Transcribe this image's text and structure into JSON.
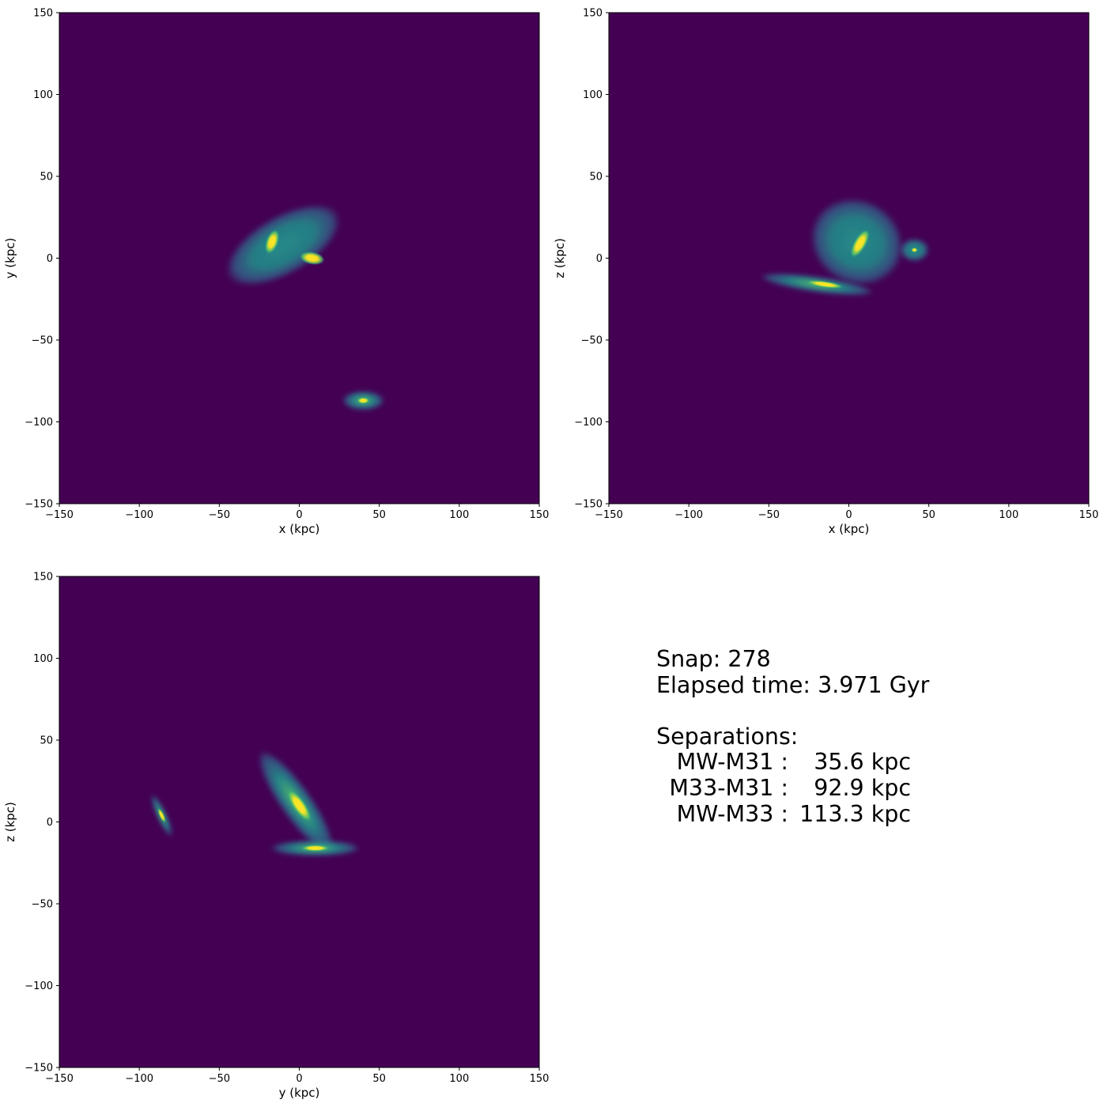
{
  "colors": {
    "background": "#440154",
    "halo": "#31688e",
    "mid": "#21918c",
    "bright": "#5ec962",
    "core": "#fde725"
  },
  "chart_data": [
    {
      "type": "heatmap",
      "xlabel": "x (kpc)",
      "ylabel": "y (kpc)",
      "xlim": [
        -150,
        150
      ],
      "ylim": [
        -150,
        150
      ],
      "xticks": [
        "−150",
        "−100",
        "−50",
        "0",
        "50",
        "100",
        "150"
      ],
      "yticks": [
        "−150",
        "−100",
        "−50",
        "0",
        "50",
        "100",
        "150"
      ],
      "colormap": "viridis",
      "density_features": [
        {
          "center": [
            -10,
            8
          ],
          "extent": [
            40,
            18
          ],
          "angle_deg": -30,
          "level": 0.35
        },
        {
          "center": [
            -17,
            10
          ],
          "extent": [
            4,
            8
          ],
          "angle_deg": 20,
          "level": 1.0
        },
        {
          "center": [
            8,
            0
          ],
          "extent": [
            8,
            4
          ],
          "angle_deg": 10,
          "level": 1.0
        },
        {
          "center": [
            40,
            -87
          ],
          "extent": [
            13,
            6
          ],
          "angle_deg": 0,
          "level": 0.5
        },
        {
          "center": [
            40,
            -87
          ],
          "extent": [
            4,
            2
          ],
          "angle_deg": 0,
          "level": 1.0
        }
      ]
    },
    {
      "type": "heatmap",
      "xlabel": "x (kpc)",
      "ylabel": "z (kpc)",
      "xlim": [
        -150,
        150
      ],
      "ylim": [
        -150,
        150
      ],
      "xticks": [
        "−150",
        "−100",
        "−50",
        "0",
        "50",
        "100",
        "150"
      ],
      "yticks": [
        "−150",
        "−100",
        "−50",
        "0",
        "50",
        "100",
        "150"
      ],
      "colormap": "viridis",
      "density_features": [
        {
          "center": [
            5,
            10
          ],
          "extent": [
            30,
            26
          ],
          "angle_deg": 30,
          "level": 0.35
        },
        {
          "center": [
            7,
            9
          ],
          "extent": [
            4,
            10
          ],
          "angle_deg": 30,
          "level": 1.0
        },
        {
          "center": [
            -20,
            -16
          ],
          "extent": [
            36,
            5
          ],
          "angle_deg": 8,
          "level": 0.5
        },
        {
          "center": [
            -15,
            -16
          ],
          "extent": [
            12,
            2
          ],
          "angle_deg": 8,
          "level": 1.0
        },
        {
          "center": [
            41,
            5
          ],
          "extent": [
            9,
            7
          ],
          "angle_deg": 0,
          "level": 0.4
        },
        {
          "center": [
            41,
            5
          ],
          "extent": [
            2,
            1.5
          ],
          "angle_deg": 0,
          "level": 1.0
        }
      ]
    },
    {
      "type": "heatmap",
      "xlabel": "y (kpc)",
      "ylabel": "z (kpc)",
      "xlim": [
        -150,
        150
      ],
      "ylim": [
        -150,
        150
      ],
      "xticks": [
        "−150",
        "−100",
        "−50",
        "0",
        "50",
        "100",
        "150"
      ],
      "yticks": [
        "−150",
        "−100",
        "−50",
        "0",
        "50",
        "100",
        "150"
      ],
      "colormap": "viridis",
      "density_features": [
        {
          "center": [
            -2,
            12
          ],
          "extent": [
            10,
            38
          ],
          "angle_deg": -35,
          "level": 0.45
        },
        {
          "center": [
            0,
            10
          ],
          "extent": [
            4,
            12
          ],
          "angle_deg": -35,
          "level": 1.0
        },
        {
          "center": [
            10,
            -16
          ],
          "extent": [
            28,
            5
          ],
          "angle_deg": 0,
          "level": 0.5
        },
        {
          "center": [
            10,
            -16
          ],
          "extent": [
            9,
            2
          ],
          "angle_deg": 0,
          "level": 1.0
        },
        {
          "center": [
            -86,
            4
          ],
          "extent": [
            3,
            14
          ],
          "angle_deg": -25,
          "level": 0.5
        },
        {
          "center": [
            -86,
            4
          ],
          "extent": [
            1.5,
            5
          ],
          "angle_deg": -25,
          "level": 1.0
        }
      ]
    }
  ],
  "info": {
    "snap": "Snap: 278",
    "elapsed": "Elapsed time: 3.971 Gyr",
    "separations_title": "Separations:",
    "separations": [
      {
        "label": "MW-M31 :",
        "value": "35.6 kpc"
      },
      {
        "label": "M33-M31 :",
        "value": "92.9 kpc"
      },
      {
        "label": "MW-M33 :",
        "value": "113.3 kpc"
      }
    ]
  }
}
